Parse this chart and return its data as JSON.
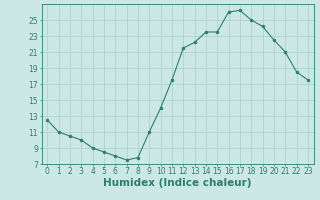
{
  "x": [
    0,
    1,
    2,
    3,
    4,
    5,
    6,
    7,
    8,
    9,
    10,
    11,
    12,
    13,
    14,
    15,
    16,
    17,
    18,
    19,
    20,
    21,
    22,
    23
  ],
  "y": [
    12.5,
    11.0,
    10.5,
    10.0,
    9.0,
    8.5,
    8.0,
    7.5,
    7.8,
    11.0,
    14.0,
    17.5,
    21.5,
    22.2,
    23.5,
    23.5,
    26.0,
    26.2,
    25.0,
    24.2,
    22.5,
    21.0,
    18.5,
    17.5
  ],
  "line_color": "#2e7d6e",
  "marker_color": "#2e7d6e",
  "bg_color": "#cce8e4",
  "grid_color": "#aacfcb",
  "xlabel": "Humidex (Indice chaleur)",
  "xlim": [
    -0.5,
    23.5
  ],
  "ylim": [
    7,
    27
  ],
  "yticks": [
    7,
    9,
    11,
    13,
    15,
    17,
    19,
    21,
    23,
    25
  ],
  "xticks": [
    0,
    1,
    2,
    3,
    4,
    5,
    6,
    7,
    8,
    9,
    10,
    11,
    12,
    13,
    14,
    15,
    16,
    17,
    18,
    19,
    20,
    21,
    22,
    23
  ],
  "tick_label_fontsize": 5.5,
  "xlabel_fontsize": 7.5,
  "axis_color": "#2e7d6e"
}
